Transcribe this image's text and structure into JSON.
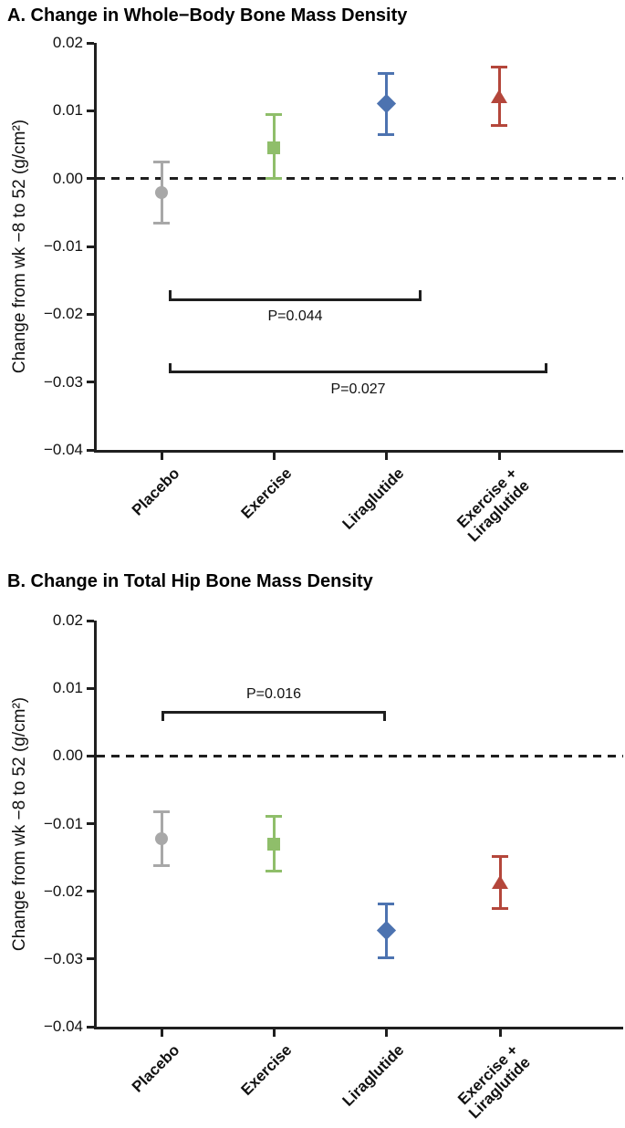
{
  "chart_data": [
    {
      "panel": "A",
      "type": "scatter",
      "title": "A. Change in Whole−Body Bone Mass Density",
      "ylabel": "Change from wk −8 to 52 (g/cm²)",
      "ylim": [
        -0.04,
        0.02
      ],
      "yticks": [
        {
          "v": 0.02,
          "label": "0.02"
        },
        {
          "v": 0.01,
          "label": "0.01"
        },
        {
          "v": 0.0,
          "label": "0.00"
        },
        {
          "v": -0.01,
          "label": "−0.01"
        },
        {
          "v": -0.02,
          "label": "−0.02"
        },
        {
          "v": -0.03,
          "label": "−0.03"
        },
        {
          "v": -0.04,
          "label": "−0.04"
        }
      ],
      "zero_dashed_line": true,
      "grid": false,
      "categories": [
        [
          "Placebo"
        ],
        [
          "Exercise"
        ],
        [
          "Liraglutide"
        ],
        [
          "Exercise +",
          "Liraglutide"
        ]
      ],
      "series": [
        {
          "name": "Placebo",
          "marker": "circle",
          "color": "#a8a8a8",
          "mean": -0.002,
          "ci": [
            -0.0065,
            0.0025
          ]
        },
        {
          "name": "Exercise",
          "marker": "square",
          "color": "#8fbe6a",
          "mean": 0.0045,
          "ci": [
            0.0,
            0.0095
          ]
        },
        {
          "name": "Liraglutide",
          "marker": "diamond",
          "color": "#4d73b0",
          "mean": 0.011,
          "ci": [
            0.0065,
            0.0155
          ]
        },
        {
          "name": "Exercise + Liraglutide",
          "marker": "triangle",
          "color": "#b4463b",
          "mean": 0.0122,
          "ci": [
            0.0078,
            0.0165
          ]
        }
      ],
      "pvalues": [
        {
          "label": "P=0.044",
          "from": 0,
          "to": 2,
          "y": -0.0178,
          "tick_dir": "up",
          "x_offsets": [
            8,
            39
          ]
        },
        {
          "label": "P=0.027",
          "from": 0,
          "to": 3,
          "y": -0.0285,
          "tick_dir": "up",
          "x_offsets": [
            8,
            53
          ]
        }
      ]
    },
    {
      "panel": "B",
      "type": "scatter",
      "title": "B. Change in Total Hip Bone Mass Density",
      "ylabel": "Change from wk −8 to 52 (g/cm²)",
      "ylim": [
        -0.04,
        0.02
      ],
      "yticks": [
        {
          "v": 0.02,
          "label": "0.02"
        },
        {
          "v": 0.01,
          "label": "0.01"
        },
        {
          "v": 0.0,
          "label": "0.00"
        },
        {
          "v": -0.01,
          "label": "−0.01"
        },
        {
          "v": -0.02,
          "label": "−0.02"
        },
        {
          "v": -0.03,
          "label": "−0.03"
        },
        {
          "v": -0.04,
          "label": "−0.04"
        }
      ],
      "zero_dashed_line": true,
      "grid": false,
      "categories": [
        [
          "Placebo"
        ],
        [
          "Exercise"
        ],
        [
          "Liraglutide"
        ],
        [
          "Exercise +",
          "Liraglutide"
        ]
      ],
      "series": [
        {
          "name": "Placebo",
          "marker": "circle",
          "color": "#a8a8a8",
          "mean": -0.0122,
          "ci": [
            -0.0162,
            -0.0083
          ]
        },
        {
          "name": "Exercise",
          "marker": "square",
          "color": "#8fbe6a",
          "mean": -0.013,
          "ci": [
            -0.017,
            -0.0089
          ]
        },
        {
          "name": "Liraglutide",
          "marker": "diamond",
          "color": "#4d73b0",
          "mean": -0.0258,
          "ci": [
            -0.0298,
            -0.0218
          ]
        },
        {
          "name": "Exercise + Liraglutide",
          "marker": "triangle",
          "color": "#b4463b",
          "mean": -0.0186,
          "ci": [
            -0.0225,
            -0.0149
          ]
        }
      ],
      "pvalues": [
        {
          "label": "P=0.016",
          "from": 0,
          "to": 2,
          "y": 0.0065,
          "tick_dir": "down",
          "x_offsets": [
            0,
            0
          ]
        }
      ]
    }
  ],
  "colors": {
    "axis": "#1f1f1f",
    "text": "#000000",
    "background": "#ffffff"
  }
}
